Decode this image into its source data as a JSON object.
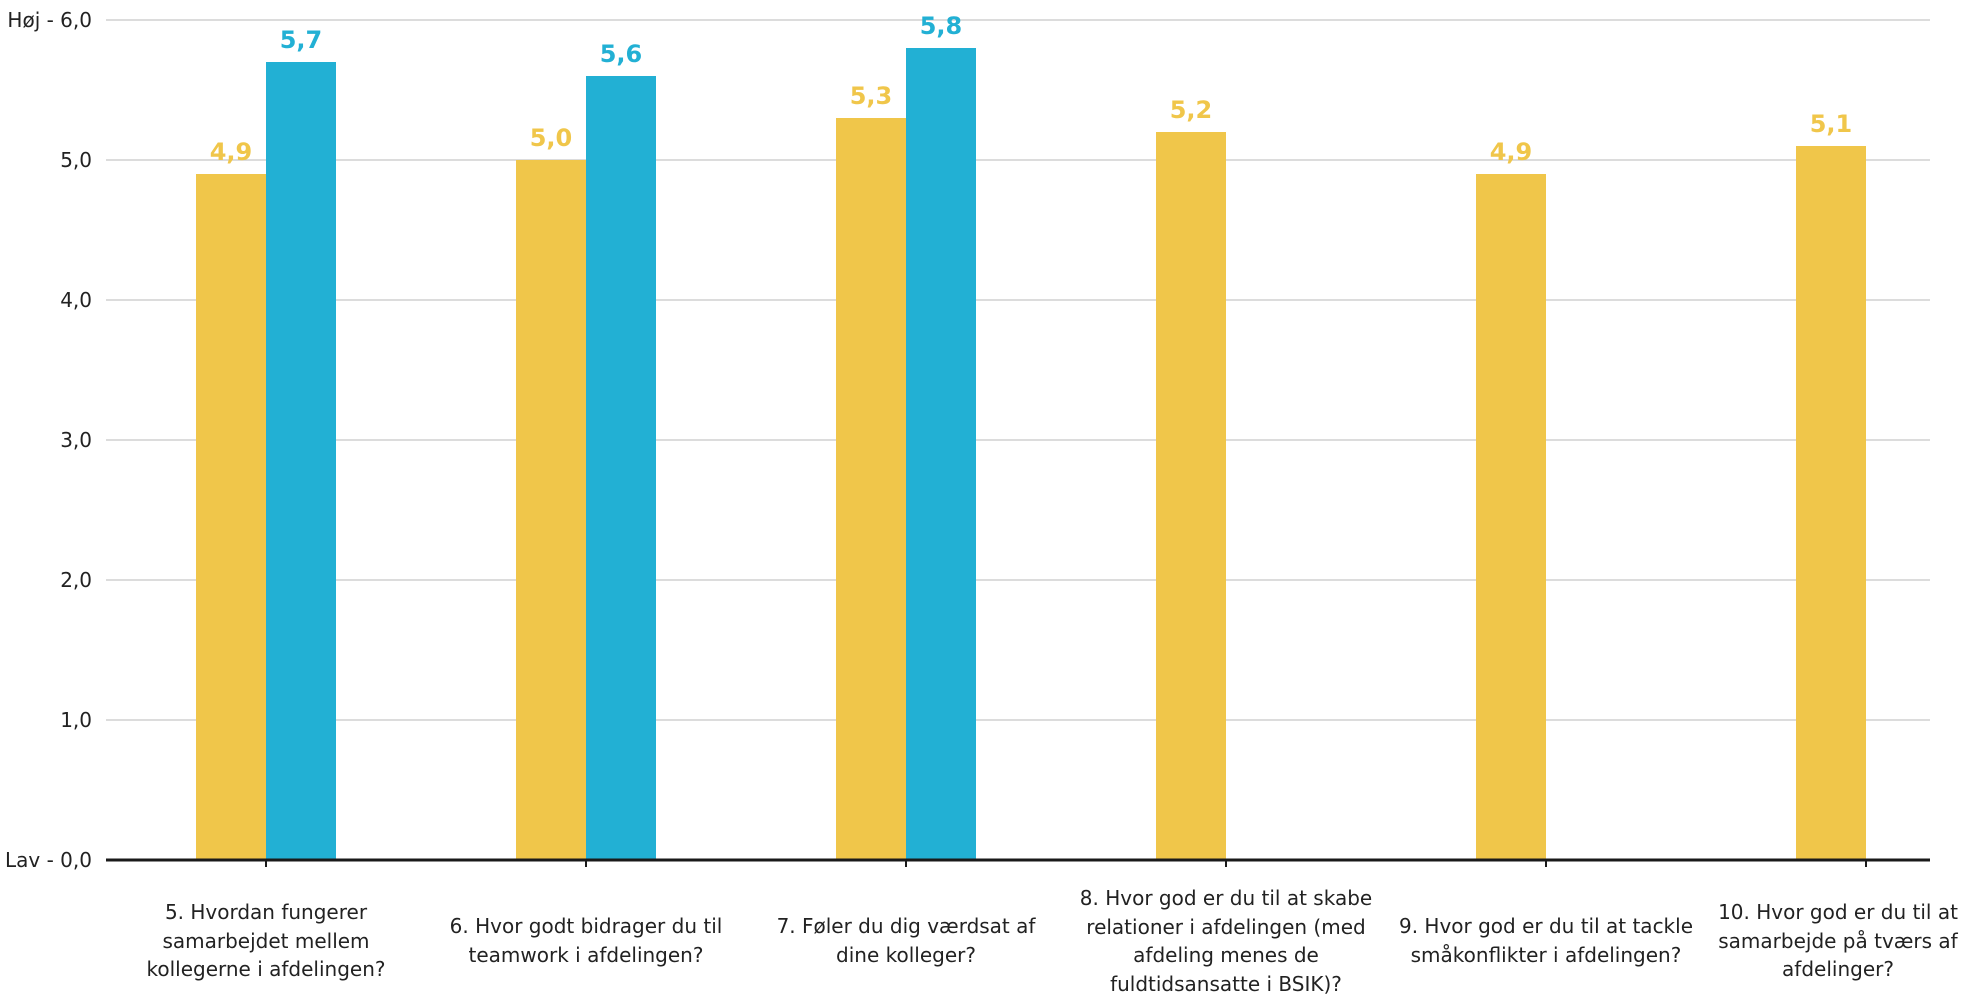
{
  "chart_data": {
    "type": "bar",
    "categories": [
      "5. Hvordan fungerer samarbejdet mellem kollegerne i afdelingen?",
      "6. Hvor godt bidrager du til teamwork  i afdelingen?",
      "7. Føler du dig værdsat af dine kolleger?",
      "8. Hvor god er du til at skabe relationer i afdelingen (med afdeling menes de fuldtidsansatte i BSIK)?",
      "9. Hvor god er du til at tackle småkonflikter i afdelingen?",
      "10. Hvor god er du til at samarbejde på tværs af afdelinger?"
    ],
    "series": [
      {
        "color": "#F0C64A",
        "values": [
          4.9,
          5.0,
          5.3,
          5.2,
          4.9,
          5.1
        ],
        "labels": [
          "4,9",
          "5,0",
          "5,3",
          "5,2",
          "4,9",
          "5,1"
        ]
      },
      {
        "color": "#22B0D4",
        "values": [
          5.7,
          5.6,
          5.8,
          null,
          null,
          null
        ],
        "labels": [
          "5,7",
          "5,6",
          "5,8",
          "",
          "",
          ""
        ]
      }
    ],
    "yticks": [
      {
        "value": 0,
        "label": "Lav - 0,0"
      },
      {
        "value": 1,
        "label": "1,0"
      },
      {
        "value": 2,
        "label": "2,0"
      },
      {
        "value": 3,
        "label": "3,0"
      },
      {
        "value": 4,
        "label": "4,0"
      },
      {
        "value": 5,
        "label": "5,0"
      },
      {
        "value": 6,
        "label": "Høj - 6,0"
      }
    ],
    "ylim": [
      0,
      6
    ],
    "grid": true,
    "gridColor": "#C8C8C8",
    "axisColor": "#1A1A1A",
    "textColor": "#222222"
  }
}
